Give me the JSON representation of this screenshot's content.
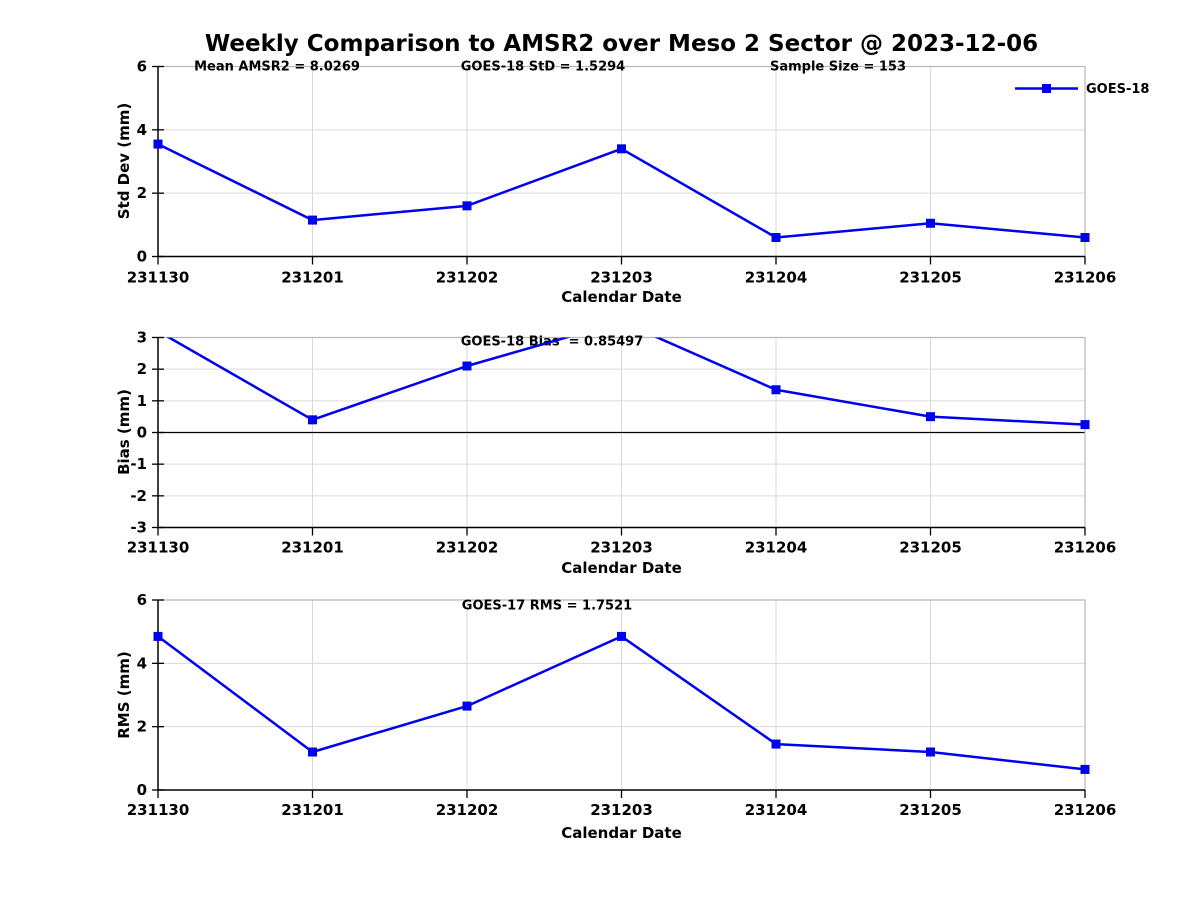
{
  "title": "Weekly Comparison to AMSR2 over Meso 2 Sector @ 2023-12-06",
  "colors": {
    "line": "#0000EE",
    "marker": "#0000EE",
    "grid": "#D9D9D9",
    "frame_light": "#B8B8B8",
    "axis": "#000000",
    "zero_line": "#000000",
    "background": "#FFFFFF",
    "text": "#000000"
  },
  "legend": {
    "label": "GOES-18"
  },
  "chart_data": [
    {
      "type": "line",
      "name": "std-dev-panel",
      "categories": [
        "231130",
        "231201",
        "231202",
        "231203",
        "231204",
        "231205",
        "231206"
      ],
      "series": [
        {
          "name": "GOES-18",
          "values": [
            3.55,
            1.15,
            1.6,
            3.4,
            0.6,
            1.05,
            0.6
          ]
        }
      ],
      "annotations": [
        "Mean AMSR2 = 8.0269",
        "GOES-18 StD = 1.5294",
        "Sample Size = 153"
      ],
      "xlabel": "Calendar Date",
      "ylabel": "Std Dev (mm)",
      "ylim": [
        0,
        6
      ],
      "yticks": [
        0,
        2,
        4,
        6
      ],
      "grid": true,
      "zero_line": false,
      "legend_visible": true,
      "legend_position": "top-right"
    },
    {
      "type": "line",
      "name": "bias-panel",
      "categories": [
        "231130",
        "231201",
        "231202",
        "231203",
        "231204",
        "231205",
        "231206"
      ],
      "series": [
        {
          "name": "GOES-18",
          "values": [
            3.2,
            0.4,
            2.1,
            3.5,
            1.35,
            0.5,
            0.25
          ]
        }
      ],
      "annotations": [
        "GOES-18 Bias  = 0.85497"
      ],
      "xlabel": "Calendar Date",
      "ylabel": "Bias (mm)",
      "ylim": [
        -3,
        3
      ],
      "yticks": [
        -3,
        -2,
        -1,
        0,
        1,
        2,
        3
      ],
      "grid": true,
      "zero_line": true,
      "legend_visible": false,
      "note": "values at 231130 and 231203 exceed ymax and are clipped at top of axes"
    },
    {
      "type": "line",
      "name": "rms-panel",
      "categories": [
        "231130",
        "231201",
        "231202",
        "231203",
        "231204",
        "231205",
        "231206"
      ],
      "series": [
        {
          "name": "GOES-18",
          "values": [
            4.85,
            1.2,
            2.65,
            4.85,
            1.45,
            1.2,
            0.65
          ]
        }
      ],
      "annotations": [
        "GOES-17 RMS = 1.7521"
      ],
      "xlabel": "Calendar Date",
      "ylabel": "RMS (mm)",
      "ylim": [
        0,
        6
      ],
      "yticks": [
        0,
        2,
        4,
        6
      ],
      "grid": true,
      "zero_line": false,
      "legend_visible": false
    }
  ]
}
